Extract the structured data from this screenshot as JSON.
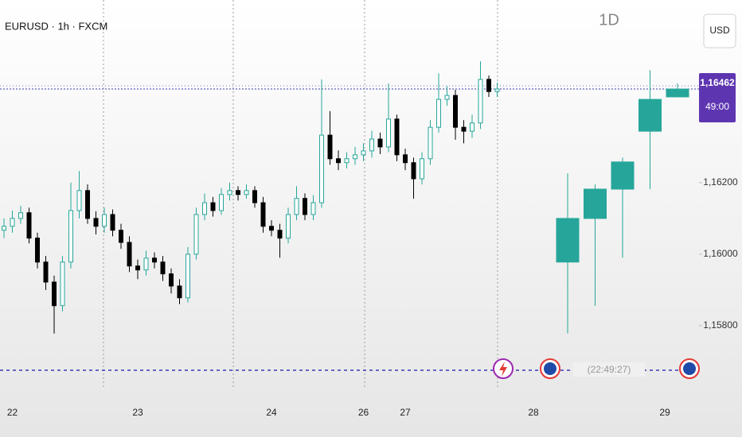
{
  "chart_data": [
    {
      "type": "candlestick",
      "title": "EURUSD · 1h · FXCM",
      "currency": "USD",
      "event_time": "(22:49:27)",
      "up_color": "#26a69a",
      "down_color": "#000000",
      "categories": [
        null,
        "22",
        null,
        null,
        null,
        null,
        null,
        null,
        null,
        null,
        null,
        null,
        null,
        null,
        null,
        null,
        "23",
        null,
        null,
        null,
        null,
        null,
        null,
        null,
        null,
        null,
        null,
        null,
        null,
        null,
        null,
        null,
        "24",
        null,
        null,
        null,
        null,
        null,
        null,
        null,
        null,
        null,
        null,
        "26",
        null,
        null,
        null,
        null,
        "27",
        null,
        null,
        null,
        null,
        null,
        null,
        null,
        null,
        null,
        null,
        null
      ],
      "future_dates": [
        "28",
        "29"
      ],
      "open": [
        1.16067,
        1.16078,
        1.161,
        1.16116,
        1.16045,
        1.15978,
        1.15922,
        1.15856,
        1.15978,
        1.16122,
        1.16178,
        1.161,
        1.16078,
        1.16111,
        1.16067,
        1.16033,
        1.15967,
        1.15956,
        1.15989,
        1.15978,
        1.15945,
        1.15911,
        1.15878,
        1.16,
        1.16111,
        1.16144,
        1.16122,
        1.16167,
        1.16178,
        1.16167,
        1.16178,
        1.16144,
        1.16078,
        1.16067,
        1.16045,
        1.16111,
        1.16156,
        1.16111,
        1.16144,
        1.16333,
        1.16267,
        1.16256,
        1.16267,
        1.16278,
        1.16289,
        1.16322,
        1.163,
        1.16378,
        1.16278,
        1.16256,
        1.16211,
        1.16267,
        1.16355,
        1.16433,
        1.16444,
        1.16355,
        1.16344,
        1.16367,
        1.16489,
        1.16455
      ],
      "high": [
        1.161,
        1.16122,
        1.16135,
        1.1613,
        1.1606,
        1.15995,
        1.1594,
        1.15995,
        1.162,
        1.16233,
        1.16195,
        1.1612,
        1.1613,
        1.16125,
        1.16085,
        1.1605,
        1.15985,
        1.1601,
        1.16005,
        1.15995,
        1.1596,
        1.1593,
        1.1602,
        1.1613,
        1.1617,
        1.1616,
        1.16185,
        1.162,
        1.1619,
        1.16195,
        1.1619,
        1.1616,
        1.16095,
        1.16085,
        1.1613,
        1.1619,
        1.1617,
        1.16165,
        1.16489,
        1.164,
        1.1629,
        1.16285,
        1.163,
        1.1631,
        1.16345,
        1.1634,
        1.16478,
        1.1639,
        1.16295,
        1.1627,
        1.16285,
        1.16375,
        1.16506,
        1.1647,
        1.1646,
        1.16375,
        1.1639,
        1.1654,
        1.165,
        1.1648
      ],
      "low": [
        1.16045,
        1.1606,
        1.16085,
        1.1603,
        1.1596,
        1.159,
        1.15778,
        1.1584,
        1.1596,
        1.161,
        1.16085,
        1.16055,
        1.1606,
        1.1605,
        1.16015,
        1.1595,
        1.1593,
        1.1594,
        1.1596,
        1.15925,
        1.1589,
        1.1586,
        1.15865,
        1.15985,
        1.16095,
        1.16105,
        1.1611,
        1.1615,
        1.1615,
        1.16155,
        1.1613,
        1.1606,
        1.1605,
        1.1599,
        1.1603,
        1.16095,
        1.16095,
        1.16095,
        1.1613,
        1.1625,
        1.16235,
        1.1624,
        1.1625,
        1.1626,
        1.1627,
        1.1628,
        1.16285,
        1.1626,
        1.16235,
        1.16155,
        1.16195,
        1.1625,
        1.1634,
        1.16415,
        1.1632,
        1.1631,
        1.16325,
        1.1635,
        1.1644,
        1.1644
      ],
      "close": [
        1.16078,
        1.161,
        1.16116,
        1.16045,
        1.15978,
        1.15922,
        1.15856,
        1.15978,
        1.16122,
        1.16178,
        1.161,
        1.16078,
        1.16111,
        1.16067,
        1.16033,
        1.15967,
        1.15956,
        1.15989,
        1.15978,
        1.15945,
        1.15911,
        1.15878,
        1.16,
        1.16111,
        1.16144,
        1.16122,
        1.16167,
        1.16178,
        1.16167,
        1.16178,
        1.16144,
        1.16078,
        1.16067,
        1.16045,
        1.16111,
        1.16156,
        1.16111,
        1.16144,
        1.16333,
        1.16267,
        1.16256,
        1.16267,
        1.16278,
        1.16289,
        1.16322,
        1.163,
        1.16378,
        1.16278,
        1.16256,
        1.16211,
        1.16267,
        1.16355,
        1.16433,
        1.16444,
        1.16355,
        1.16344,
        1.16367,
        1.16489,
        1.16455,
        1.16462
      ],
      "ylim": [
        1.15622,
        1.16711
      ],
      "yticks": [
        {
          "value": 1.158,
          "label": "1,15800"
        },
        {
          "value": 1.16,
          "label": "1,16000"
        },
        {
          "value": 1.162,
          "label": "1,16200"
        }
      ],
      "last_price": {
        "value": 1.16462,
        "label": "1,16462"
      },
      "countdown": "49:00"
    },
    {
      "type": "candlestick",
      "title": "1D",
      "up_color": "#26a69a",
      "down_color": "#000000",
      "open": [
        1.15978,
        1.161,
        1.16182,
        1.16344,
        1.1644
      ],
      "high": [
        1.16226,
        1.16195,
        1.1627,
        1.16515,
        1.16478
      ],
      "low": [
        1.15778,
        1.15856,
        1.1599,
        1.16182,
        1.1644
      ],
      "close": [
        1.161,
        1.16182,
        1.16258,
        1.16433,
        1.16462
      ],
      "ylim": [
        1.15622,
        1.16711
      ]
    }
  ]
}
